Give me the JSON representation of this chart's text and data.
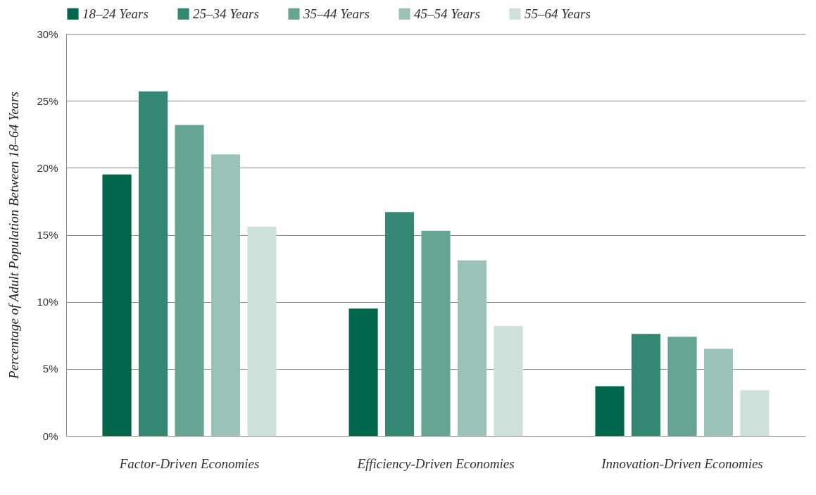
{
  "chart_data": {
    "type": "bar",
    "ylabel": "Percentage of Adult Population Between 18–64 Years",
    "categories": [
      "Factor-Driven Economies",
      "Efficiency-Driven Economies",
      "Innovation-Driven Economies"
    ],
    "series": [
      {
        "name": "18–24 Years",
        "color": "#00664b",
        "values": [
          19.5,
          9.5,
          3.7
        ]
      },
      {
        "name": "25–34 Years",
        "color": "#348773",
        "values": [
          25.7,
          16.7,
          7.6
        ]
      },
      {
        "name": "35–44 Years",
        "color": "#66a594",
        "values": [
          23.2,
          15.3,
          7.4
        ]
      },
      {
        "name": "45–54 Years",
        "color": "#9bc2b8",
        "values": [
          21.0,
          13.1,
          6.5
        ]
      },
      {
        "name": "55–64 Years",
        "color": "#cde0da",
        "values": [
          15.6,
          8.2,
          3.4
        ]
      }
    ],
    "ylim": [
      0,
      30
    ],
    "yticks": [
      {
        "value": 0,
        "label": "0%"
      },
      {
        "value": 5,
        "label": "5%"
      },
      {
        "value": 10,
        "label": "10%"
      },
      {
        "value": 15,
        "label": "15%"
      },
      {
        "value": 20,
        "label": "20%"
      },
      {
        "value": 25,
        "label": "25%"
      },
      {
        "value": 30,
        "label": "30%"
      }
    ],
    "grid": "y",
    "legend": "top"
  }
}
